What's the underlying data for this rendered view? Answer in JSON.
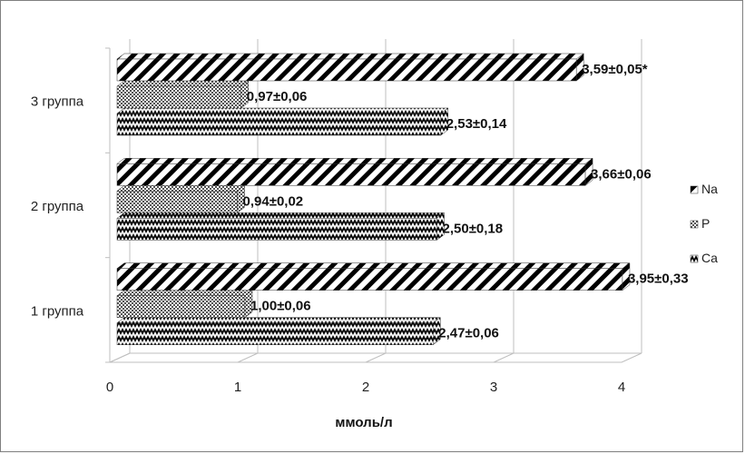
{
  "chart_data": {
    "type": "bar",
    "orientation": "horizontal",
    "style": "3d",
    "categories": [
      "1 группа",
      "2 группа",
      "3 группа"
    ],
    "series": [
      {
        "name": "Ca",
        "values": [
          2.47,
          2.5,
          2.53
        ],
        "labels": [
          "2,47±0,06",
          "2,50±0,18",
          "2,53±0,14"
        ],
        "pattern": "zigzag"
      },
      {
        "name": "P",
        "values": [
          1.0,
          0.94,
          0.97
        ],
        "labels": [
          "1,00±0,06",
          "0,94±0,02",
          "0,97±0,06"
        ],
        "pattern": "checker"
      },
      {
        "name": "Na",
        "values": [
          3.95,
          3.66,
          3.59
        ],
        "labels": [
          "3,95±0,33",
          "3,66±0,06",
          "3,59±0,05*"
        ],
        "pattern": "diagonal"
      }
    ],
    "xlabel": "ммоль/л",
    "xlim": [
      0,
      4
    ],
    "xticks": [
      "0",
      "1",
      "2",
      "3",
      "4"
    ],
    "grid": true,
    "legend": "right"
  },
  "colors": {
    "bar_fill": "#000000",
    "bar_bg": "#ffffff",
    "grid": "#bfbfbf",
    "text": "#222222"
  }
}
